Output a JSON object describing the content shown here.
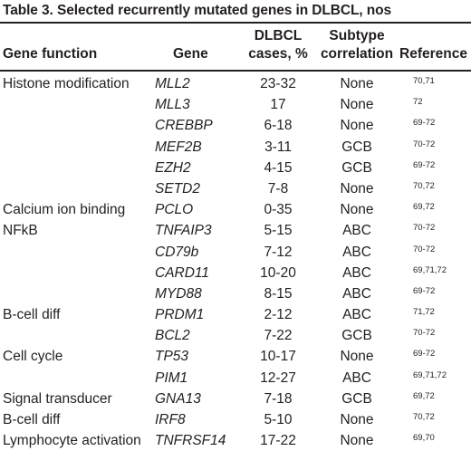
{
  "caption": "Table 3.   Selected recurrently mutated genes in DLBCL, nos",
  "headers": {
    "function": "Gene function",
    "gene": "Gene",
    "cases_line1": "DLBCL",
    "cases_line2": "cases, %",
    "subtype_line1": "Subtype",
    "subtype_line2": "correlation",
    "reference": "Reference"
  },
  "rows": [
    {
      "function": "Histone modification",
      "gene": "MLL2",
      "cases": "23-32",
      "subtype": "None",
      "reference": "70,71"
    },
    {
      "function": "",
      "gene": "MLL3",
      "cases": "17",
      "subtype": "None",
      "reference": "72"
    },
    {
      "function": "",
      "gene": "CREBBP",
      "cases": "6-18",
      "subtype": "None",
      "reference": "69-72"
    },
    {
      "function": "",
      "gene": "MEF2B",
      "cases": "3-11",
      "subtype": "GCB",
      "reference": "70-72"
    },
    {
      "function": "",
      "gene": "EZH2",
      "cases": "4-15",
      "subtype": "GCB",
      "reference": "69-72"
    },
    {
      "function": "",
      "gene": "SETD2",
      "cases": "7-8",
      "subtype": "None",
      "reference": "70,72"
    },
    {
      "function": "Calcium ion binding",
      "gene": "PCLO",
      "cases": "0-35",
      "subtype": "None",
      "reference": "69,72"
    },
    {
      "function": "NFkB",
      "gene": "TNFAIP3",
      "cases": "5-15",
      "subtype": "ABC",
      "reference": "70-72"
    },
    {
      "function": "",
      "gene": "CD79b",
      "cases": "7-12",
      "subtype": "ABC",
      "reference": "70-72"
    },
    {
      "function": "",
      "gene": "CARD11",
      "cases": "10-20",
      "subtype": "ABC",
      "reference": "69,71,72"
    },
    {
      "function": "",
      "gene": "MYD88",
      "cases": "8-15",
      "subtype": "ABC",
      "reference": "69-72"
    },
    {
      "function": "B-cell diff",
      "gene": "PRDM1",
      "cases": "2-12",
      "subtype": "ABC",
      "reference": "71,72"
    },
    {
      "function": "",
      "gene": "BCL2",
      "cases": "7-22",
      "subtype": "GCB",
      "reference": "70-72"
    },
    {
      "function": "Cell cycle",
      "gene": "TP53",
      "cases": "10-17",
      "subtype": "None",
      "reference": "69-72"
    },
    {
      "function": "",
      "gene": "PIM1",
      "cases": "12-27",
      "subtype": "ABC",
      "reference": "69,71,72"
    },
    {
      "function": "Signal transducer",
      "gene": "GNA13",
      "cases": "7-18",
      "subtype": "GCB",
      "reference": "69,72"
    },
    {
      "function": "B-cell diff",
      "gene": "IRF8",
      "cases": "5-10",
      "subtype": "None",
      "reference": "70,72"
    },
    {
      "function": "Lymphocyte activation",
      "gene": "TNFRSF14",
      "cases": "17-22",
      "subtype": "None",
      "reference": "69,70"
    }
  ]
}
